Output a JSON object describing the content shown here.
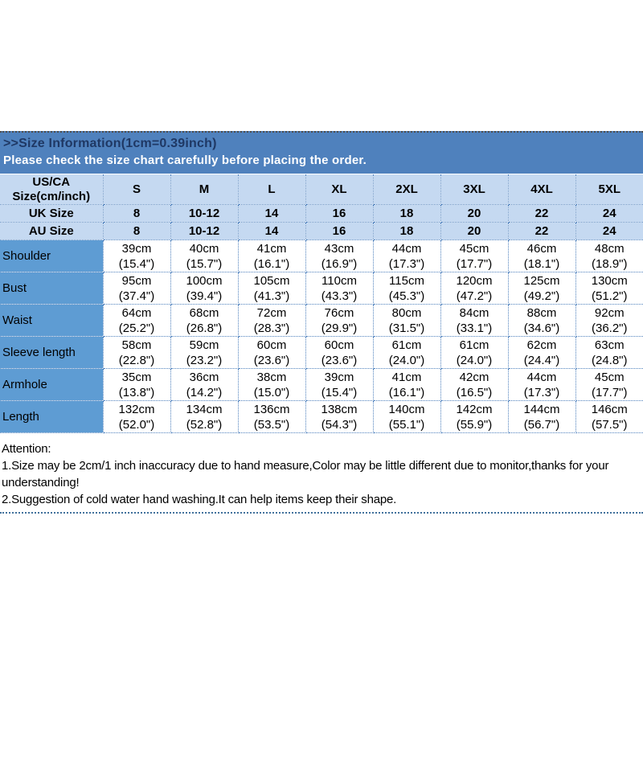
{
  "banner": {
    "title": ">>Size Information(1cm=0.39inch)",
    "subtitle": "Please check the size chart carefully before placing the order."
  },
  "table": {
    "corner": {
      "line1": "US/CA",
      "line2": "Size(cm/inch)"
    },
    "sizes": [
      "S",
      "M",
      "L",
      "XL",
      "2XL",
      "3XL",
      "4XL",
      "5XL"
    ],
    "uk": {
      "label": "UK Size",
      "values": [
        "8",
        "10-12",
        "14",
        "16",
        "18",
        "20",
        "22",
        "24"
      ]
    },
    "au": {
      "label": "AU Size",
      "values": [
        "8",
        "10-12",
        "14",
        "16",
        "18",
        "20",
        "22",
        "24"
      ]
    },
    "body": [
      {
        "label": "Shoulder",
        "cells": [
          {
            "cm": "39cm",
            "in": "(15.4\")"
          },
          {
            "cm": "40cm",
            "in": "(15.7\")"
          },
          {
            "cm": "41cm",
            "in": "(16.1\")"
          },
          {
            "cm": "43cm",
            "in": "(16.9\")"
          },
          {
            "cm": "44cm",
            "in": "(17.3\")"
          },
          {
            "cm": "45cm",
            "in": "(17.7\")"
          },
          {
            "cm": "46cm",
            "in": "(18.1\")"
          },
          {
            "cm": "48cm",
            "in": "(18.9\")"
          }
        ]
      },
      {
        "label": "Bust",
        "cells": [
          {
            "cm": "95cm",
            "in": "(37.4\")"
          },
          {
            "cm": "100cm",
            "in": "(39.4\")"
          },
          {
            "cm": "105cm",
            "in": "(41.3\")"
          },
          {
            "cm": "110cm",
            "in": "(43.3\")"
          },
          {
            "cm": "115cm",
            "in": "(45.3\")"
          },
          {
            "cm": "120cm",
            "in": "(47.2\")"
          },
          {
            "cm": "125cm",
            "in": "(49.2\")"
          },
          {
            "cm": "130cm",
            "in": "(51.2\")"
          }
        ]
      },
      {
        "label": "Waist",
        "cells": [
          {
            "cm": "64cm",
            "in": "(25.2\")"
          },
          {
            "cm": "68cm",
            "in": "(26.8\")"
          },
          {
            "cm": "72cm",
            "in": "(28.3\")"
          },
          {
            "cm": "76cm",
            "in": "(29.9\")"
          },
          {
            "cm": "80cm",
            "in": "(31.5\")"
          },
          {
            "cm": "84cm",
            "in": "(33.1\")"
          },
          {
            "cm": "88cm",
            "in": "(34.6\")"
          },
          {
            "cm": "92cm",
            "in": "(36.2\")"
          }
        ]
      },
      {
        "label": "Sleeve length",
        "cells": [
          {
            "cm": "58cm",
            "in": "(22.8\")"
          },
          {
            "cm": "59cm",
            "in": "(23.2\")"
          },
          {
            "cm": "60cm",
            "in": "(23.6\")"
          },
          {
            "cm": "60cm",
            "in": "(23.6\")"
          },
          {
            "cm": "61cm",
            "in": "(24.0\")"
          },
          {
            "cm": "61cm",
            "in": "(24.0\")"
          },
          {
            "cm": "62cm",
            "in": "(24.4\")"
          },
          {
            "cm": "63cm",
            "in": "(24.8\")"
          }
        ]
      },
      {
        "label": "Armhole",
        "cells": [
          {
            "cm": "35cm",
            "in": "(13.8\")"
          },
          {
            "cm": "36cm",
            "in": "(14.2\")"
          },
          {
            "cm": "38cm",
            "in": "(15.0\")"
          },
          {
            "cm": "39cm",
            "in": "(15.4\")"
          },
          {
            "cm": "41cm",
            "in": "(16.1\")"
          },
          {
            "cm": "42cm",
            "in": "(16.5\")"
          },
          {
            "cm": "44cm",
            "in": "(17.3\")"
          },
          {
            "cm": "45cm",
            "in": "(17.7\")"
          }
        ]
      },
      {
        "label": "Length",
        "cells": [
          {
            "cm": "132cm",
            "in": "(52.0\")"
          },
          {
            "cm": "134cm",
            "in": "(52.8\")"
          },
          {
            "cm": "136cm",
            "in": "(53.5\")"
          },
          {
            "cm": "138cm",
            "in": "(54.3\")"
          },
          {
            "cm": "140cm",
            "in": "(55.1\")"
          },
          {
            "cm": "142cm",
            "in": "(55.9\")"
          },
          {
            "cm": "144cm",
            "in": "(56.7\")"
          },
          {
            "cm": "146cm",
            "in": "(57.5\")"
          }
        ]
      }
    ]
  },
  "attention": {
    "title": "Attention:",
    "notes": [
      "1.Size may be 2cm/1 inch inaccuracy due to hand measure,Color may be little different due to monitor,thanks for your understanding!",
      "2.Suggestion of cold water hand washing.It can help items keep their shape."
    ]
  },
  "colors": {
    "banner_bg": "#4f81bd",
    "banner_title_text": "#1f3864",
    "banner_subtitle_text": "#ffffff",
    "header_row_bg": "#c5d9f1",
    "label_column_bg": "#5e9cd3",
    "dotted_border": "#4f81bd",
    "body_text": "#000000"
  }
}
